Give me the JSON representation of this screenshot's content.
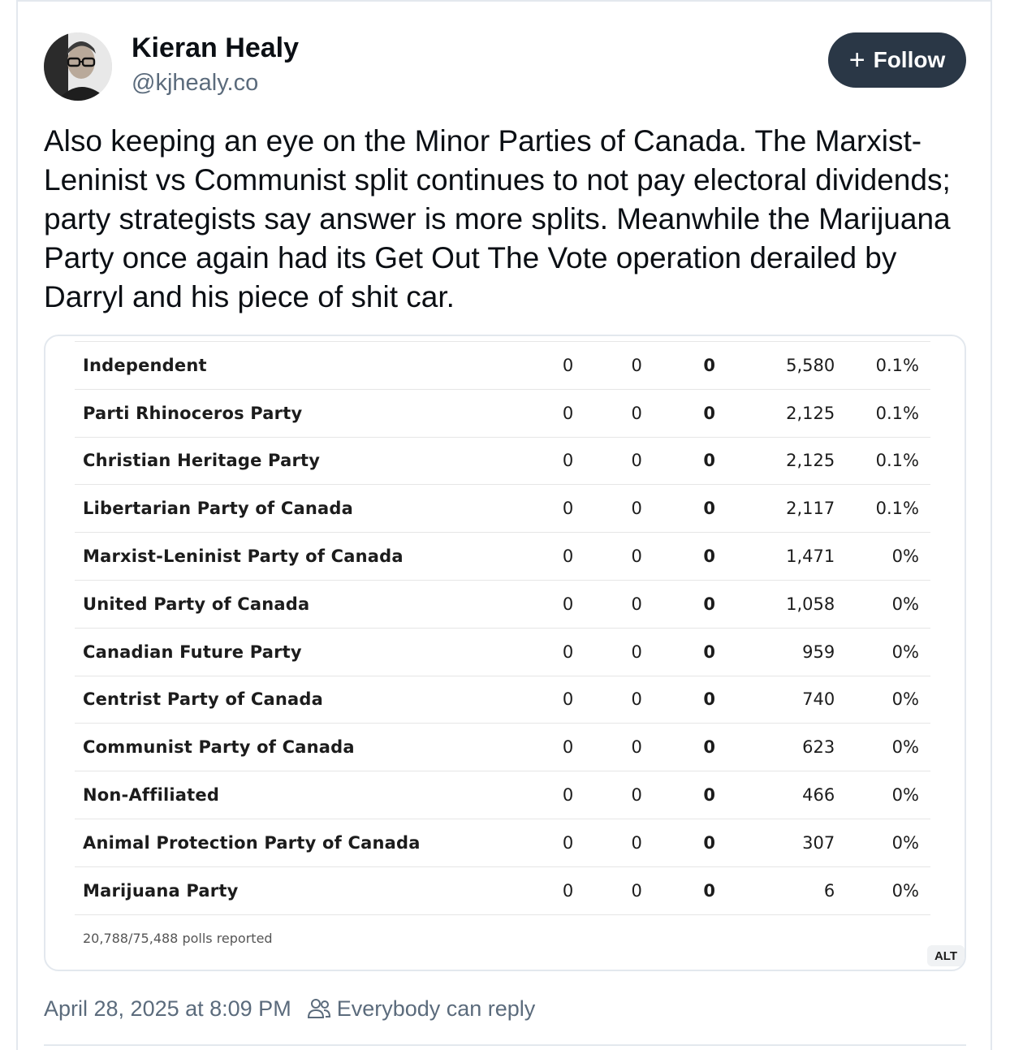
{
  "author": {
    "name": "Kieran Healy",
    "handle": "@kjhealy.co",
    "avatar_icon": "person-avatar"
  },
  "follow_button": {
    "label": "Follow",
    "icon": "plus-icon"
  },
  "post": {
    "text": "Also keeping an eye on the Minor Parties of Canada. The Marxist-Leninist vs Communist split continues to not pay electoral dividends; party strategists say answer is more splits. Meanwhile the Marijuana Party once again had its Get Out The Vote operation derailed by Darryl and his piece of shit car."
  },
  "image": {
    "rows": [
      {
        "party": "Independent",
        "c1": "0",
        "c2": "0",
        "c3": "0",
        "votes": "5,580",
        "pct": "0.1%"
      },
      {
        "party": "Parti Rhinoceros Party",
        "c1": "0",
        "c2": "0",
        "c3": "0",
        "votes": "2,125",
        "pct": "0.1%"
      },
      {
        "party": "Christian Heritage Party",
        "c1": "0",
        "c2": "0",
        "c3": "0",
        "votes": "2,125",
        "pct": "0.1%"
      },
      {
        "party": "Libertarian Party of Canada",
        "c1": "0",
        "c2": "0",
        "c3": "0",
        "votes": "2,117",
        "pct": "0.1%"
      },
      {
        "party": "Marxist-Leninist Party of Canada",
        "c1": "0",
        "c2": "0",
        "c3": "0",
        "votes": "1,471",
        "pct": "0%"
      },
      {
        "party": "United Party of Canada",
        "c1": "0",
        "c2": "0",
        "c3": "0",
        "votes": "1,058",
        "pct": "0%"
      },
      {
        "party": "Canadian Future Party",
        "c1": "0",
        "c2": "0",
        "c3": "0",
        "votes": "959",
        "pct": "0%"
      },
      {
        "party": "Centrist Party of Canada",
        "c1": "0",
        "c2": "0",
        "c3": "0",
        "votes": "740",
        "pct": "0%"
      },
      {
        "party": "Communist Party of Canada",
        "c1": "0",
        "c2": "0",
        "c3": "0",
        "votes": "623",
        "pct": "0%"
      },
      {
        "party": "Non-Affiliated",
        "c1": "0",
        "c2": "0",
        "c3": "0",
        "votes": "466",
        "pct": "0%"
      },
      {
        "party": "Animal Protection Party of Canada",
        "c1": "0",
        "c2": "0",
        "c3": "0",
        "votes": "307",
        "pct": "0%"
      },
      {
        "party": "Marijuana Party",
        "c1": "0",
        "c2": "0",
        "c3": "0",
        "votes": "6",
        "pct": "0%"
      }
    ],
    "polls_reported": "20,788/75,488 polls reported",
    "alt_badge": "ALT"
  },
  "meta": {
    "timestamp": "April 28, 2025 at 8:09 PM",
    "reply_setting": "Everybody can reply",
    "reply_icon": "people-icon"
  }
}
